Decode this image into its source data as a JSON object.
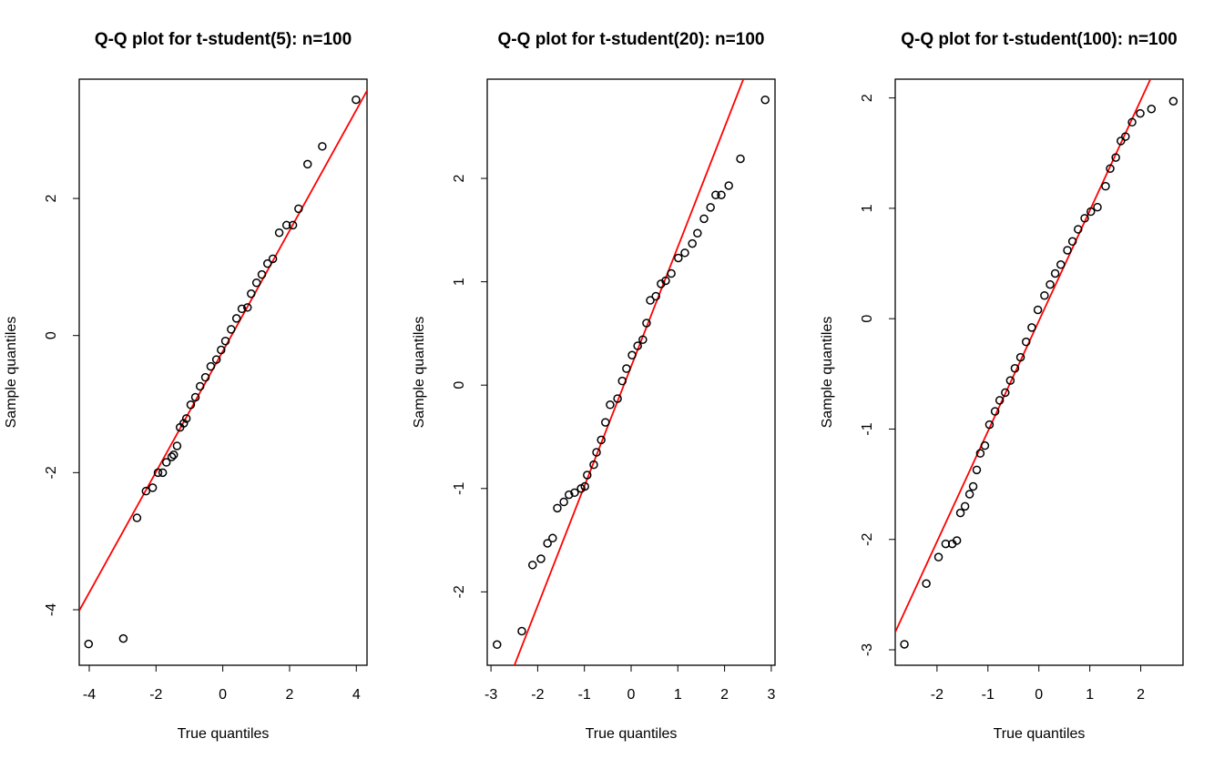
{
  "chart_data": [
    {
      "type": "scatter",
      "title": "Q-Q plot for t-student(5): n=100",
      "x_label": "True quantiles",
      "y_label": "Sample quantiles",
      "x": [
        -4.02,
        -2.98,
        -2.57,
        -2.3,
        -2.1,
        -1.94,
        -1.8,
        -1.69,
        -1.53,
        -1.47,
        -1.37,
        -1.28,
        -1.17,
        -1.09,
        -0.96,
        -0.82,
        -0.68,
        -0.52,
        -0.36,
        -0.19,
        -0.05,
        0.08,
        0.25,
        0.41,
        0.57,
        0.74,
        0.85,
        1.01,
        1.17,
        1.34,
        1.5,
        1.69,
        1.91,
        2.1,
        2.27,
        2.54,
        2.98,
        3.99
      ],
      "y": [
        -4.5,
        -4.42,
        -2.66,
        -2.27,
        -2.22,
        -2.0,
        -2.0,
        -1.85,
        -1.77,
        -1.74,
        -1.61,
        -1.34,
        -1.28,
        -1.21,
        -1.01,
        -0.9,
        -0.74,
        -0.61,
        -0.45,
        -0.35,
        -0.21,
        -0.08,
        0.09,
        0.25,
        0.39,
        0.41,
        0.61,
        0.77,
        0.89,
        1.05,
        1.12,
        1.5,
        1.61,
        1.61,
        1.85,
        2.5,
        2.76,
        3.44
      ],
      "xlim": [
        -4.3,
        4.32
      ],
      "ylim": [
        -4.81,
        3.74
      ],
      "xticks": [
        -4,
        -2,
        0,
        2,
        4
      ],
      "yticks": [
        -4,
        -2,
        0,
        2
      ],
      "point_color": "#000000",
      "reference_line": {
        "intercept": -0.23,
        "slope": 0.88,
        "color": "#ff0000"
      }
    },
    {
      "type": "scatter",
      "title": "Q-Q plot for t-student(20): n=100",
      "x_label": "True quantiles",
      "y_label": "Sample quantiles",
      "x": [
        -2.87,
        -2.34,
        -2.11,
        -1.93,
        -1.79,
        -1.68,
        -1.58,
        -1.44,
        -1.33,
        -1.21,
        -1.07,
        -0.99,
        -0.94,
        -0.8,
        -0.74,
        -0.64,
        -0.55,
        -0.45,
        -0.29,
        -0.19,
        -0.1,
        0.02,
        0.14,
        0.25,
        0.33,
        0.41,
        0.53,
        0.64,
        0.74,
        0.86,
        1.01,
        1.15,
        1.31,
        1.42,
        1.56,
        1.7,
        1.81,
        1.93,
        2.09,
        2.34,
        2.87
      ],
      "y": [
        -2.51,
        -2.38,
        -1.74,
        -1.68,
        -1.53,
        -1.48,
        -1.19,
        -1.13,
        -1.06,
        -1.04,
        -1.0,
        -0.98,
        -0.87,
        -0.77,
        -0.65,
        -0.53,
        -0.36,
        -0.19,
        -0.13,
        0.04,
        0.16,
        0.29,
        0.38,
        0.44,
        0.6,
        0.82,
        0.86,
        0.98,
        1.01,
        1.08,
        1.23,
        1.28,
        1.37,
        1.47,
        1.61,
        1.72,
        1.84,
        1.84,
        1.93,
        2.19,
        2.76
      ],
      "xlim": [
        -3.08,
        3.08
      ],
      "ylim": [
        -2.71,
        2.96
      ],
      "xticks": [
        -3,
        -2,
        -1,
        0,
        1,
        2,
        3
      ],
      "yticks": [
        -2,
        -1,
        0,
        1,
        2
      ],
      "point_color": "#000000",
      "reference_line": {
        "intercept": 0.18,
        "slope": 1.157,
        "color": "#ff0000"
      }
    },
    {
      "type": "scatter",
      "title": "Q-Q plot for t-student(100): n=100",
      "x_label": "True quantiles",
      "y_label": "Sample quantiles",
      "x": [
        -2.64,
        -2.21,
        -1.97,
        -1.83,
        -1.7,
        -1.61,
        -1.54,
        -1.45,
        -1.36,
        -1.29,
        -1.22,
        -1.15,
        -1.06,
        -0.97,
        -0.86,
        -0.77,
        -0.66,
        -0.56,
        -0.47,
        -0.36,
        -0.25,
        -0.14,
        -0.02,
        0.11,
        0.22,
        0.32,
        0.43,
        0.56,
        0.66,
        0.77,
        0.9,
        1.02,
        1.15,
        1.31,
        1.4,
        1.51,
        1.61,
        1.7,
        1.83,
        1.99,
        2.21,
        2.64
      ],
      "y": [
        -2.95,
        -2.4,
        -2.16,
        -2.04,
        -2.04,
        -2.01,
        -1.76,
        -1.7,
        -1.59,
        -1.52,
        -1.37,
        -1.22,
        -1.15,
        -0.96,
        -0.84,
        -0.74,
        -0.67,
        -0.56,
        -0.45,
        -0.35,
        -0.21,
        -0.08,
        0.08,
        0.21,
        0.31,
        0.41,
        0.49,
        0.62,
        0.7,
        0.81,
        0.91,
        0.97,
        1.01,
        1.2,
        1.36,
        1.46,
        1.61,
        1.65,
        1.78,
        1.86,
        1.9,
        1.97
      ],
      "xlim": [
        -2.82,
        2.83
      ],
      "ylim": [
        -3.14,
        2.17
      ],
      "xticks": [
        -2,
        -1,
        0,
        1,
        2
      ],
      "yticks": [
        -3,
        -2,
        -1,
        0,
        1,
        2
      ],
      "point_color": "#000000",
      "reference_line": {
        "intercept": -0.02,
        "slope": 1.0,
        "color": "#ff0000"
      }
    }
  ]
}
